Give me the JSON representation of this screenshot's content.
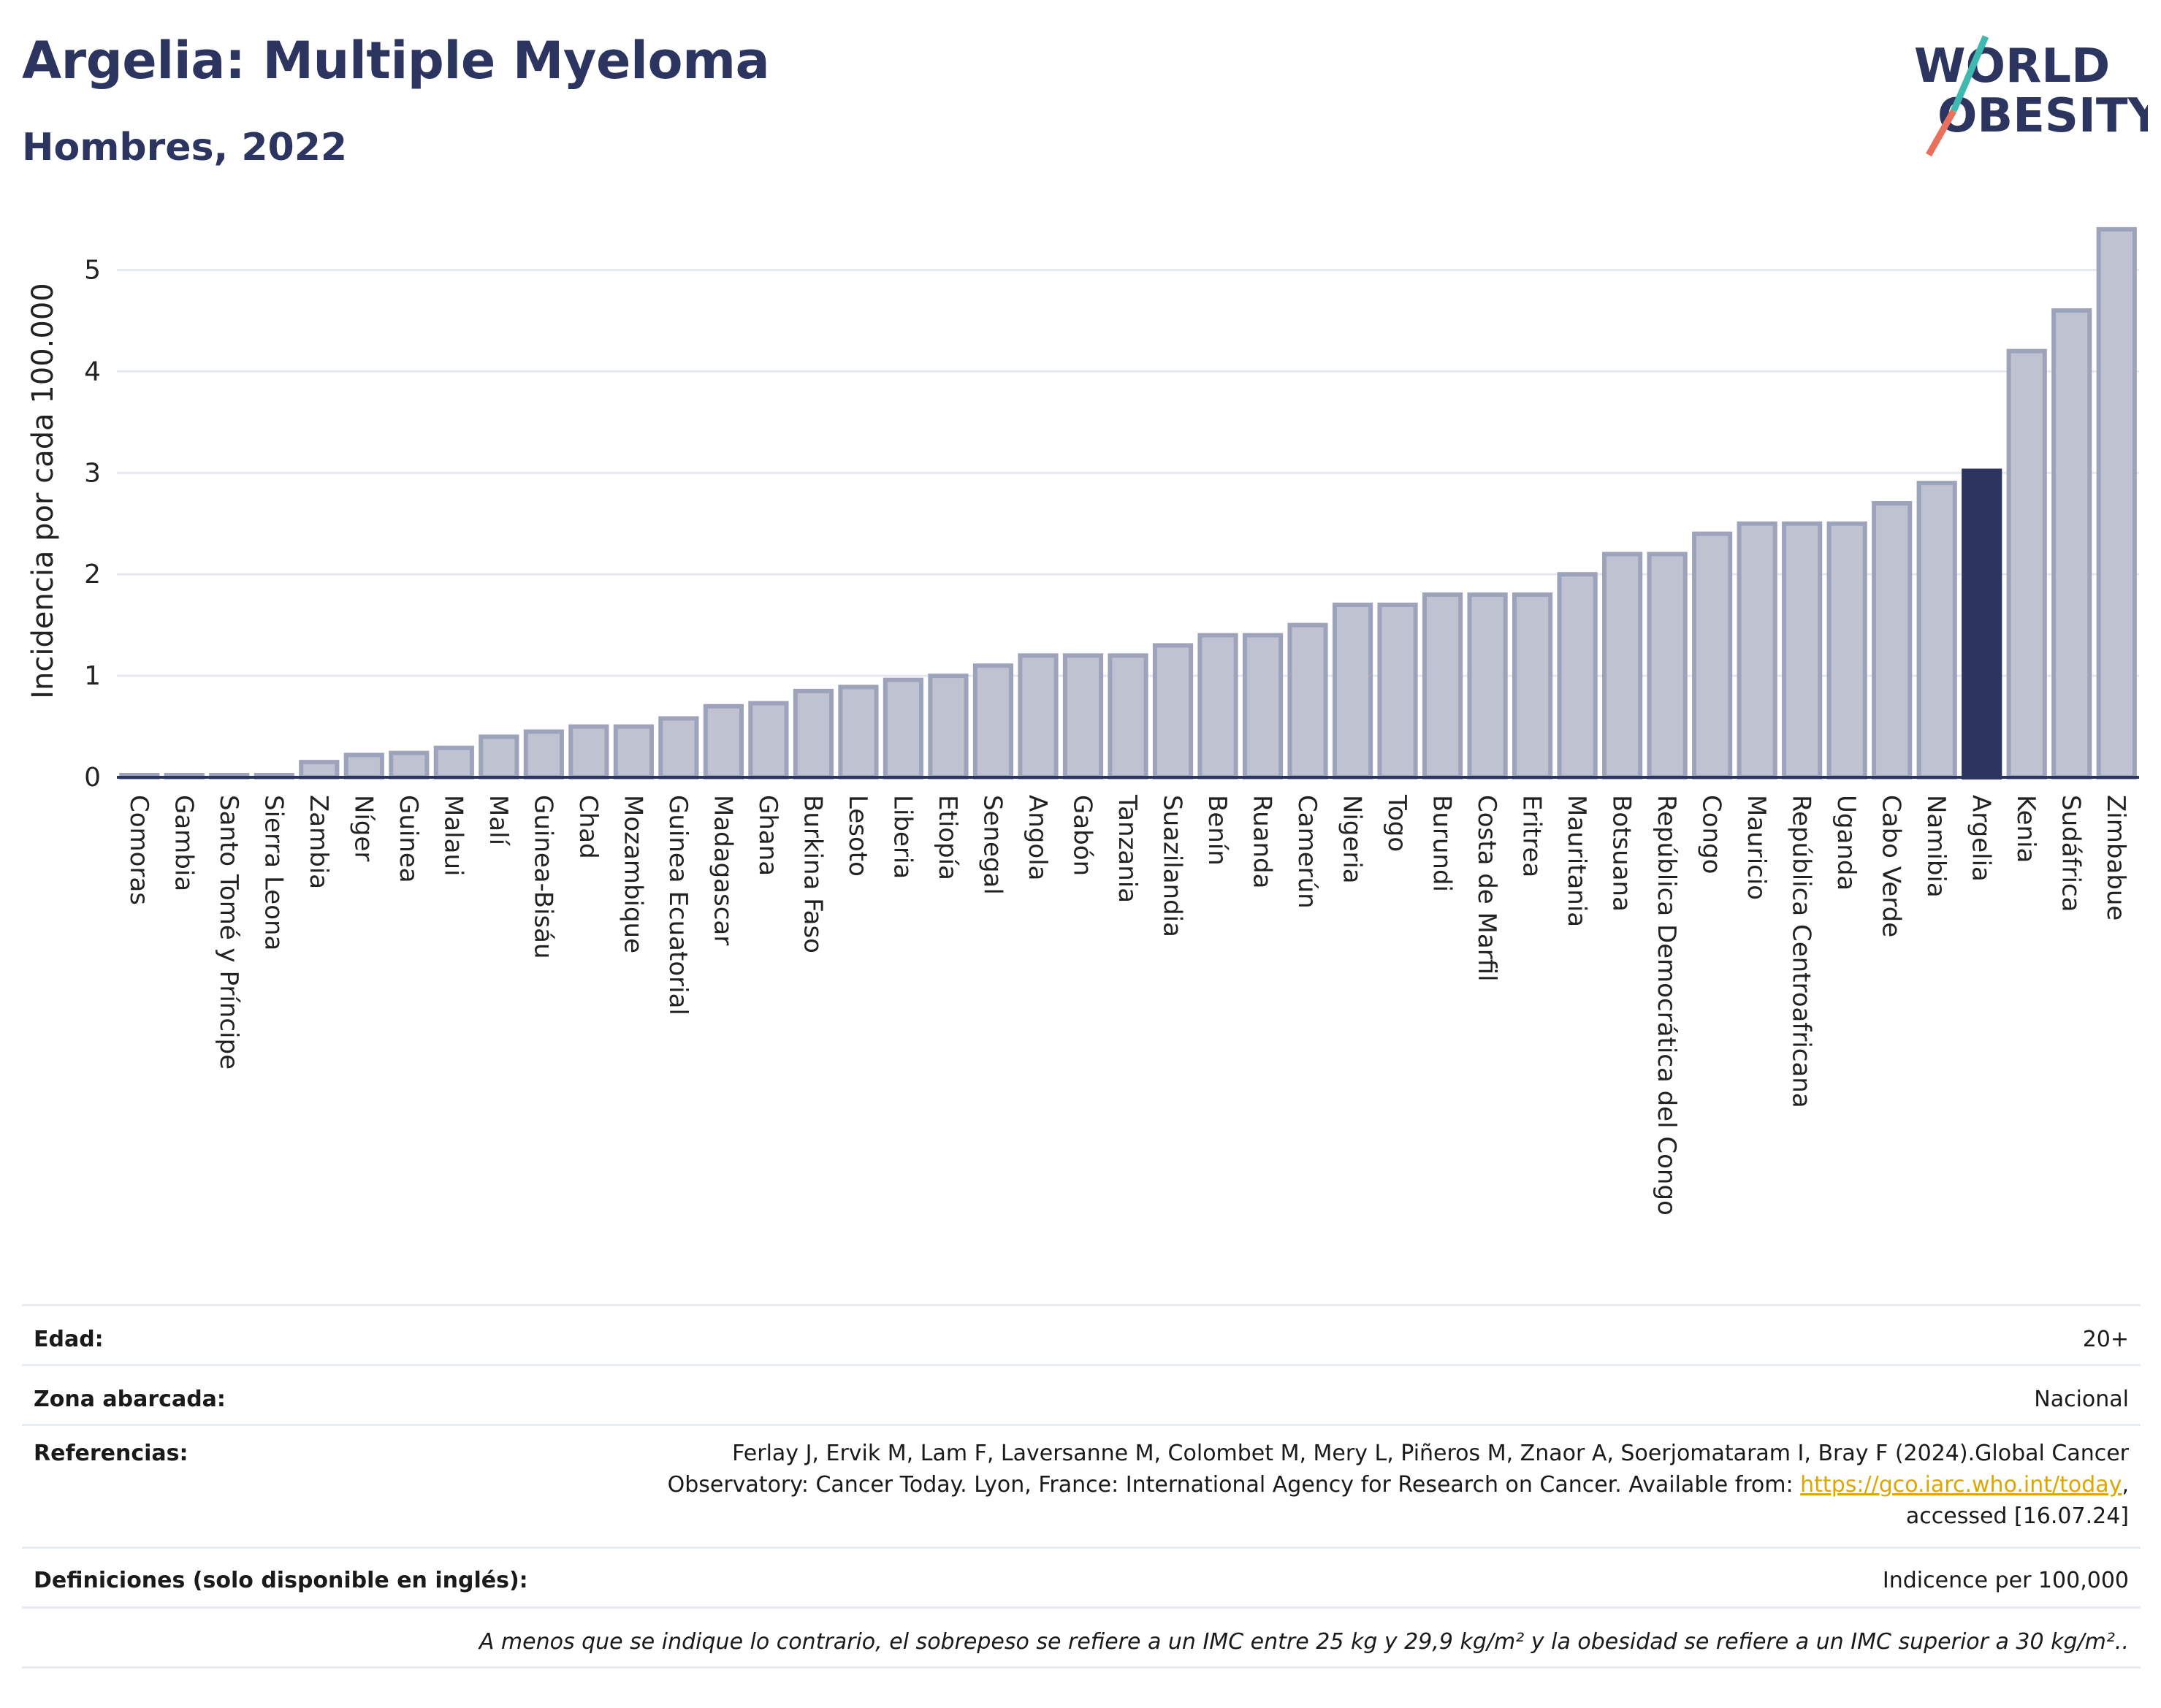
{
  "title": "Argelia: Multiple Myeloma",
  "subtitle": "Hombres, 2022",
  "logo": {
    "line1": "WORLD",
    "line2": "OBESITY"
  },
  "colors": {
    "bar": "#bfc3d1",
    "bar_stroke": "#9da3bb",
    "highlight": "#2b3560",
    "grid": "#e6e9ef",
    "axis": "#2b3560"
  },
  "chart_data": {
    "type": "bar",
    "ylabel": "Incidencia por cada 100.000",
    "xlabel": "",
    "ylim": [
      0,
      5.5
    ],
    "yticks": [
      0,
      1,
      2,
      3,
      4,
      5
    ],
    "grid": true,
    "highlight": "Argelia",
    "categories": [
      "Comoras",
      "Gambia",
      "Santo Tomé y Príncipe",
      "Sierra Leona",
      "Zambia",
      "Níger",
      "Guinea",
      "Malaui",
      "Malí",
      "Guinea-Bisáu",
      "Chad",
      "Mozambique",
      "Guinea Ecuatorial",
      "Madagascar",
      "Ghana",
      "Burkina Faso",
      "Lesoto",
      "Liberia",
      "Etiopía",
      "Senegal",
      "Angola",
      "Gabón",
      "Tanzania",
      "Suazilandia",
      "Benín",
      "Ruanda",
      "Camerún",
      "Nigeria",
      "Togo",
      "Burundi",
      "Costa de Marfil",
      "Eritrea",
      "Mauritania",
      "Botsuana",
      "República Democrática del Congo",
      "Congo",
      "Mauricio",
      "República Centroafricana",
      "Uganda",
      "Cabo Verde",
      "Namibia",
      "Argelia",
      "Kenia",
      "Sudáfrica",
      "Zimbabue"
    ],
    "values": [
      0.02,
      0.02,
      0.02,
      0.02,
      0.15,
      0.22,
      0.24,
      0.29,
      0.4,
      0.45,
      0.5,
      0.5,
      0.58,
      0.7,
      0.73,
      0.85,
      0.89,
      0.96,
      1.0,
      1.1,
      1.2,
      1.2,
      1.2,
      1.3,
      1.4,
      1.4,
      1.5,
      1.7,
      1.7,
      1.8,
      1.8,
      1.8,
      2.0,
      2.2,
      2.2,
      2.4,
      2.5,
      2.5,
      2.5,
      2.7,
      2.9,
      3.02,
      4.2,
      4.6,
      5.4
    ]
  },
  "info": {
    "edad_label": "Edad:",
    "edad_value": "20+",
    "zona_label": "Zona abarcada:",
    "zona_value": "Nacional",
    "ref_label": "Referencias:",
    "ref_line1": "Ferlay J, Ervik M, Lam F, Laversanne M, Colombet M, Mery L, Piñeros M, Znaor A, Soerjomataram I, Bray F (2024).Global Cancer",
    "ref_line2": "Observatory: Cancer Today. Lyon, France: International Agency for Research on Cancer. Available from: ",
    "ref_link": "https://gco.iarc.who.int/today",
    "ref_line2_end": ",",
    "ref_line3": "accessed [16.07.24]",
    "def_label": "Definiciones (solo disponible en inglés):",
    "def_value": "Indicence per 100,000",
    "note": "A menos que se indique lo contrario, el sobrepeso se refiere a un IMC entre 25 kg y 29,9 kg/m² y la obesidad se refiere a un IMC superior a 30 kg/m².."
  }
}
